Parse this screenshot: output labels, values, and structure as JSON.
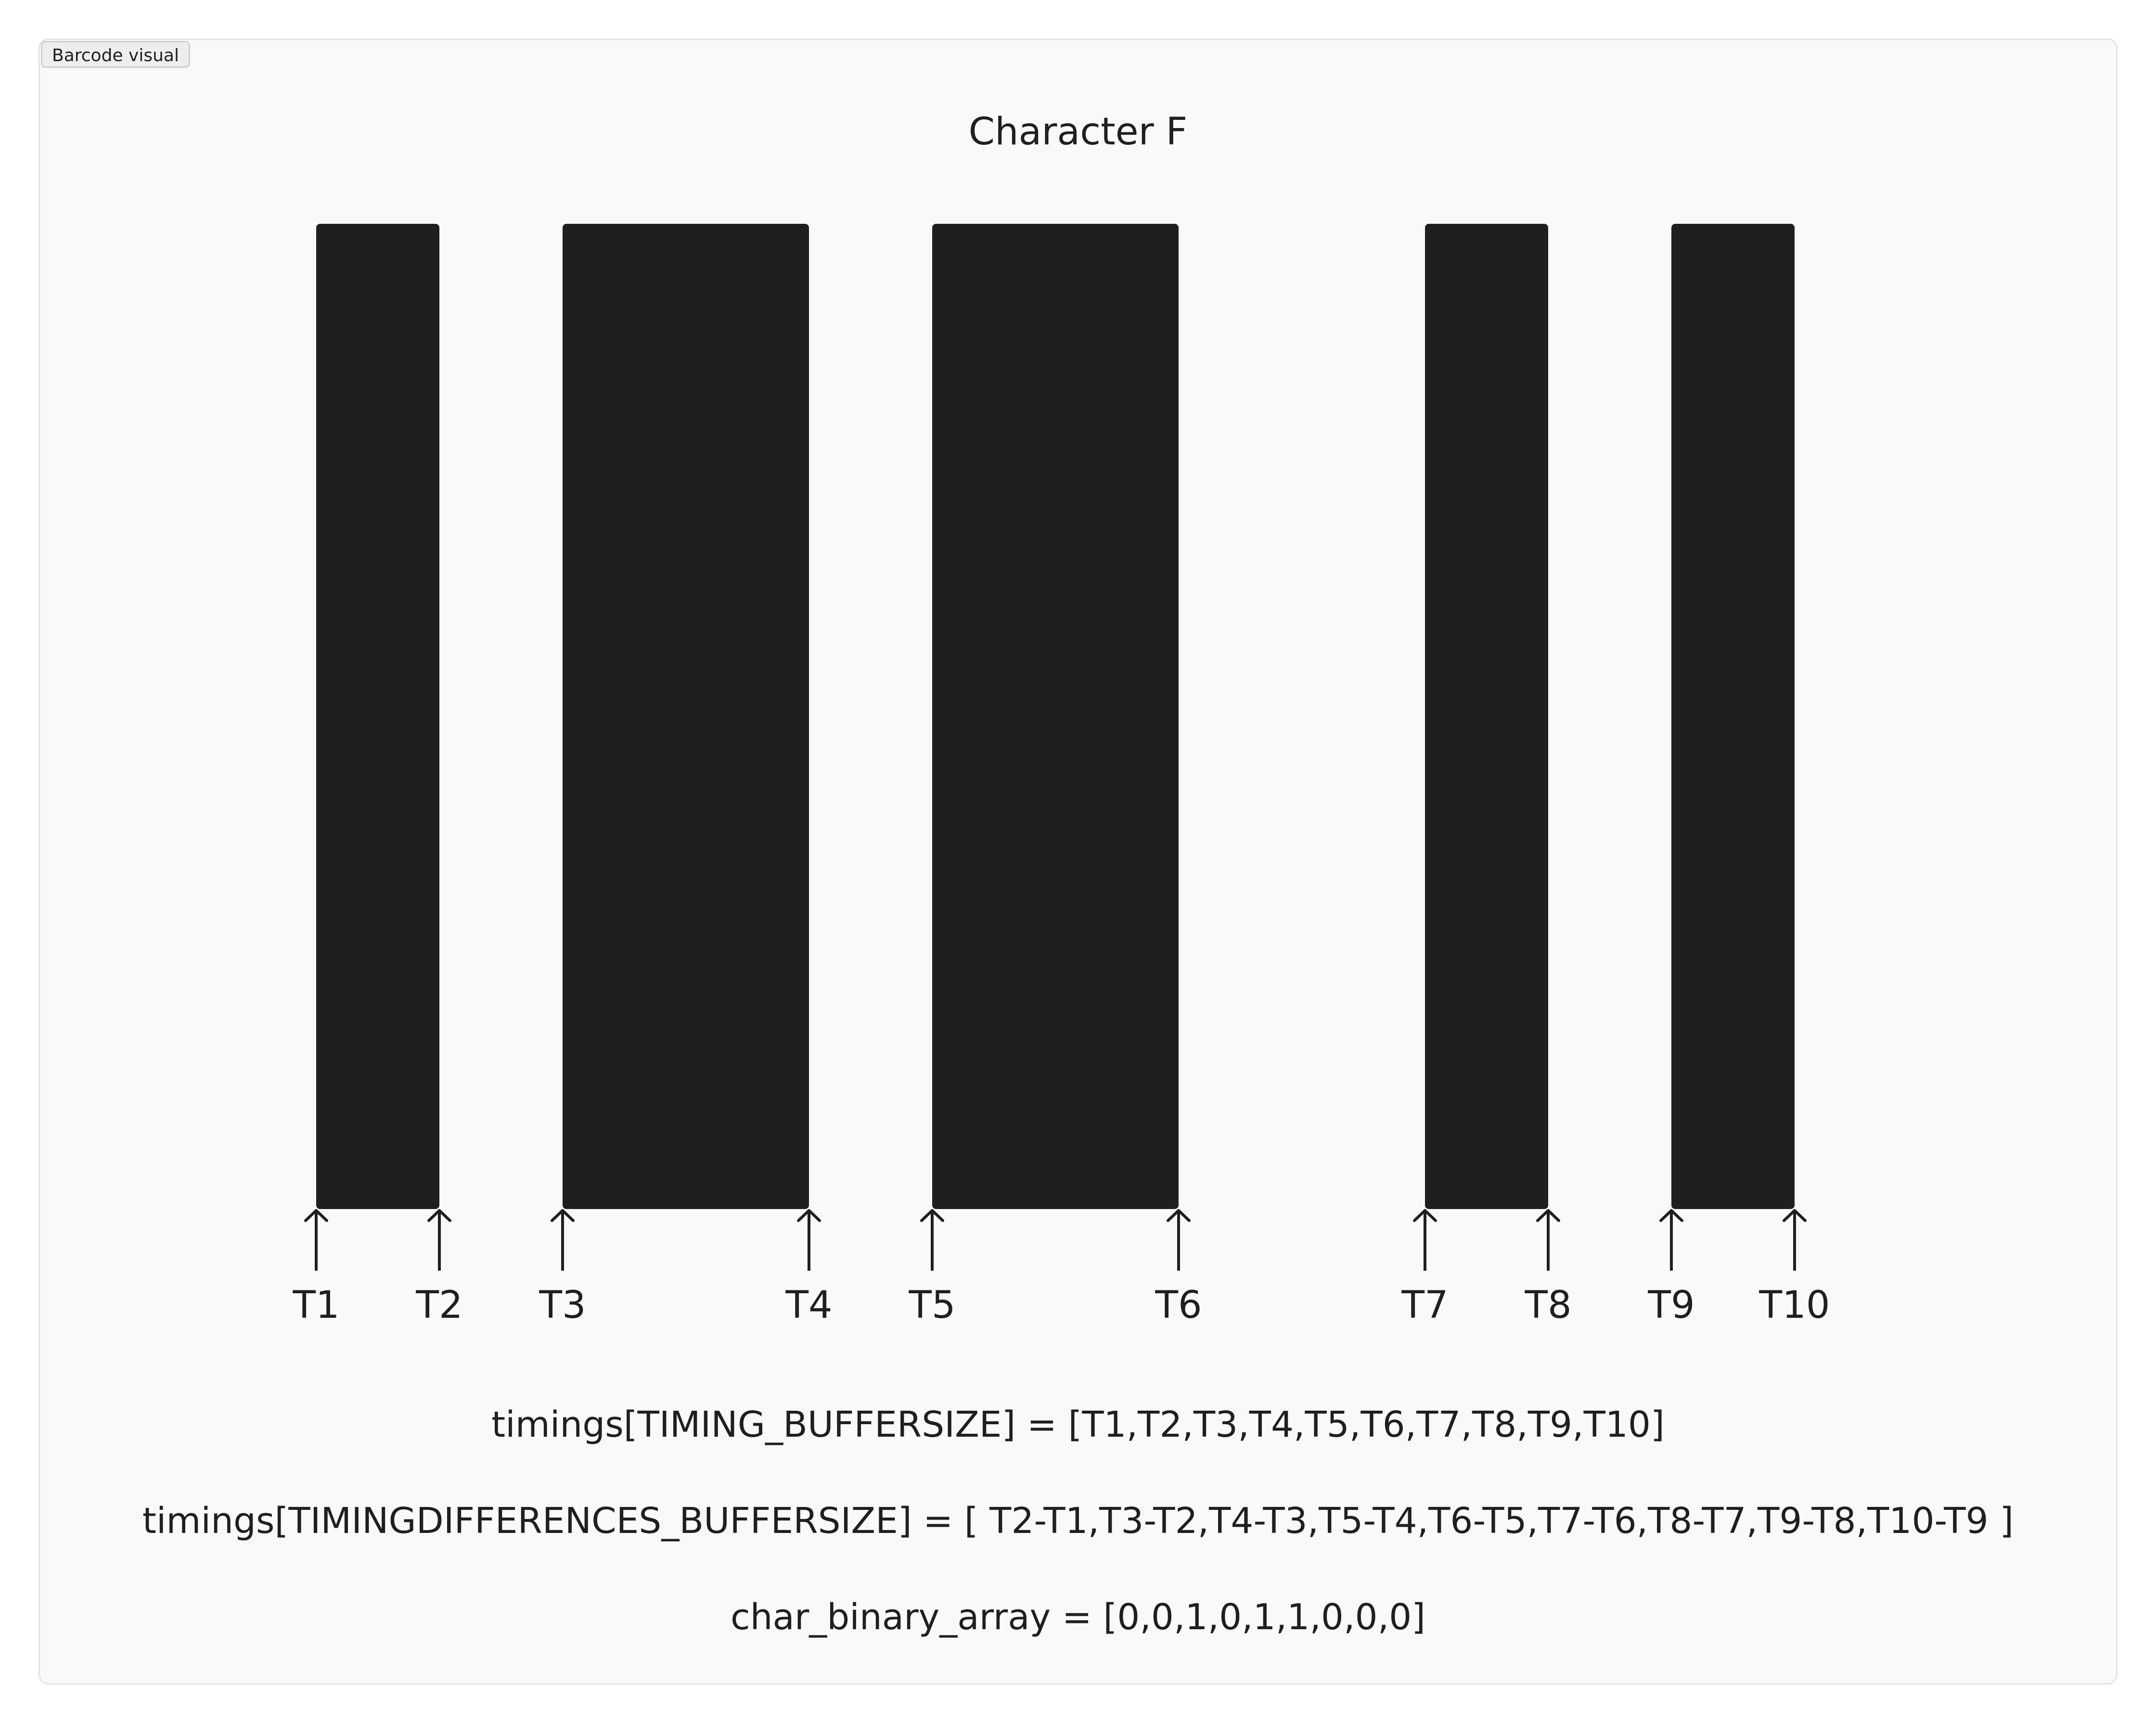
{
  "tag_label": "Barcode visual",
  "title": "Character F",
  "bars": [
    {
      "start": "T1",
      "end": "T2"
    },
    {
      "start": "T3",
      "end": "T4"
    },
    {
      "start": "T5",
      "end": "T6"
    },
    {
      "start": "T7",
      "end": "T8"
    },
    {
      "start": "T9",
      "end": "T10"
    }
  ],
  "timing_labels": [
    "T1",
    "T2",
    "T3",
    "T4",
    "T5",
    "T6",
    "T7",
    "T8",
    "T9",
    "T10"
  ],
  "timing_values": [
    0,
    1,
    2,
    4,
    5,
    7,
    9,
    10,
    11,
    12
  ],
  "formulas": [
    "timings[TIMING_BUFFERSIZE] = [T1,T2,T3,T4,T5,T6,T7,T8,T9,T10]",
    "timings[TIMINGDIFFERENCES_BUFFERSIZE] = [ T2-T1,T3-T2,T4-T3,T5-T4,T6-T5,T7-T6,T8-T7,T9-T8,T10-T9 ]",
    "char_binary_array = [0,0,1,0,1,1,0,0,0]"
  ],
  "colors": {
    "bar": "#1f1f1f",
    "panel": "#f9f9f9",
    "text": "#1f1f1f"
  }
}
